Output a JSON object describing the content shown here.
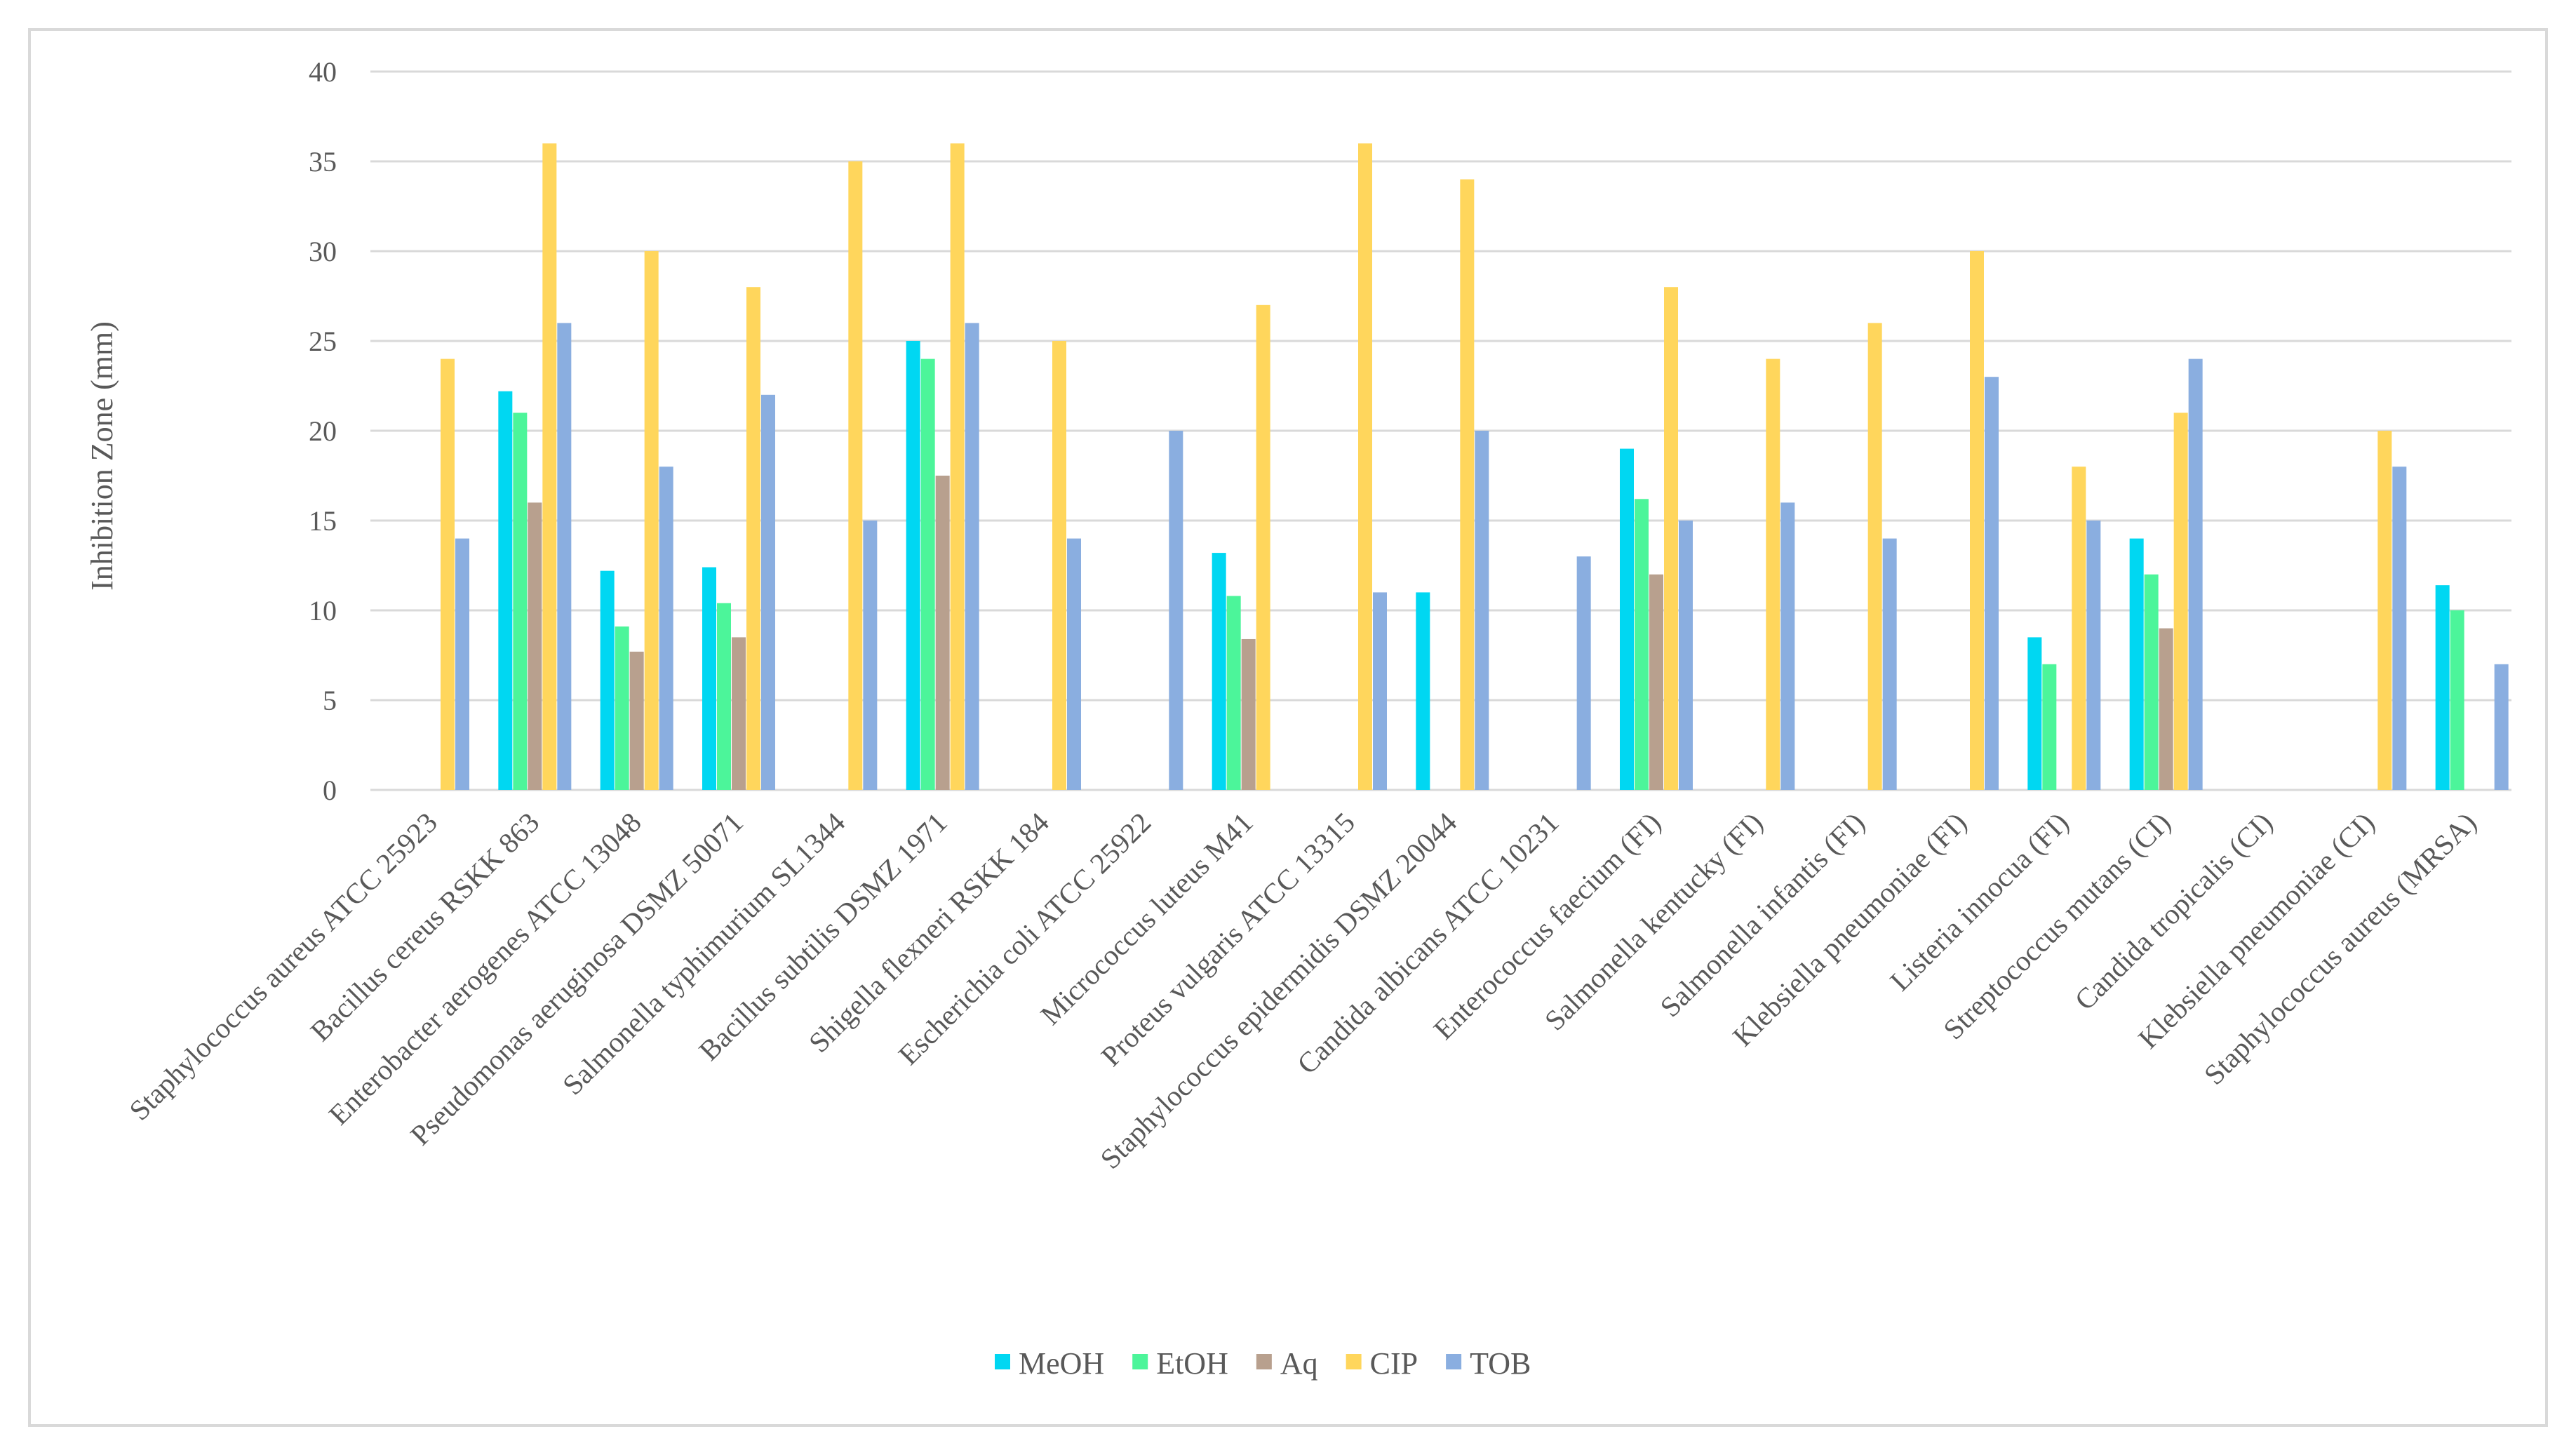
{
  "chart_data": {
    "type": "bar",
    "title": "",
    "xlabel": "",
    "ylabel": "Inhibition Zone (mm)",
    "ylim": [
      0,
      40
    ],
    "yticks": [
      0,
      5,
      10,
      15,
      20,
      25,
      30,
      35,
      40
    ],
    "grid": true,
    "legend_position": "bottom",
    "categories": [
      "Staphylococcus aureus ATCC 25923",
      "Bacillus cereus RSKK 863",
      "Enterobacter aerogenes ATCC 13048",
      "Pseudomonas aeruginosa DSMZ 50071",
      "Salmonella typhimurium SL1344",
      "Bacillus subtilis DSMZ 1971",
      "Shigella flexneri RSKK 184",
      "Escherichia coli ATCC 25922",
      "Micrococcus luteus M41",
      "Proteus vulgaris ATCC 13315",
      "Staphylococcus epidermidis DSMZ 20044",
      "Candida albicans ATCC 10231",
      "Enterococcus faecium (FI)",
      "Salmonella kentucky (FI)",
      "Salmonella infantis (FI)",
      "Klebsiella pneumoniae (FI)",
      "Listeria innocua (FI)",
      "Streptococcus mutans (CI)",
      "Candida tropicalis (CI)",
      "Klebsiella pneumoniae (CI)",
      "Staphylococcus aureus (MRSA)"
    ],
    "series": [
      {
        "name": "MeOH",
        "color": "#00d7f2",
        "values": [
          0,
          22.2,
          12.2,
          12.4,
          0,
          25,
          0,
          0,
          13.2,
          0,
          11,
          0,
          19,
          0,
          0,
          0,
          8.5,
          14,
          0,
          0,
          11.4
        ]
      },
      {
        "name": "EtOH",
        "color": "#4cf59a",
        "values": [
          0,
          21,
          9.1,
          10.4,
          0,
          24,
          0,
          0,
          10.8,
          0,
          0,
          0,
          16.2,
          0,
          0,
          0,
          7,
          12,
          0,
          0,
          10
        ]
      },
      {
        "name": "Aq",
        "color": "#b8a08e",
        "values": [
          0,
          16,
          7.7,
          8.5,
          0,
          17.5,
          0,
          0,
          8.4,
          0,
          0,
          0,
          12,
          0,
          0,
          0,
          0,
          9,
          0,
          0,
          0
        ]
      },
      {
        "name": "CIP",
        "color": "#ffd65c",
        "values": [
          24,
          36,
          30,
          28,
          35,
          36,
          25,
          0,
          27,
          36,
          34,
          0,
          28,
          24,
          26,
          30,
          18,
          21,
          0,
          20,
          0
        ]
      },
      {
        "name": "TOB",
        "color": "#8aaee0",
        "values": [
          14,
          26,
          18,
          22,
          15,
          26,
          14,
          20,
          0,
          11,
          20,
          13,
          15,
          16,
          14,
          23,
          15,
          24,
          0,
          18,
          7
        ]
      }
    ]
  }
}
